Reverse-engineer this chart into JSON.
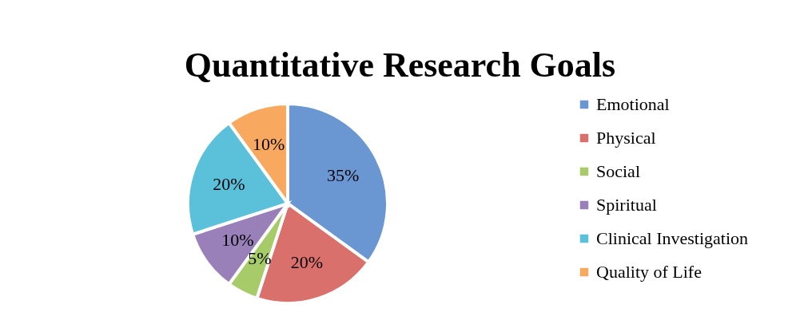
{
  "chart_data": {
    "type": "pie",
    "title": "Quantitative Research Goals",
    "categories": [
      "Emotional",
      "Physical",
      "Social",
      "Spiritual",
      "Clinical Investigation",
      "Quality of Life"
    ],
    "values": [
      35,
      20,
      5,
      10,
      20,
      10
    ],
    "colors": [
      "#6a96d2",
      "#d9706c",
      "#a8cb6a",
      "#9980b8",
      "#5bc0da",
      "#f9a860"
    ],
    "value_labels": [
      "35%",
      "20%",
      "5%",
      "10%",
      "20%",
      "10%"
    ],
    "legend": "right"
  }
}
